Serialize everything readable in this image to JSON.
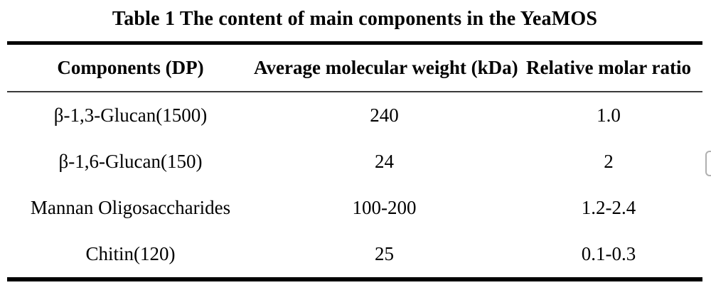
{
  "title": "Table 1 The content of main components in the YeaMOS",
  "table": {
    "headers": [
      "Components (DP)",
      "Average molecular weight (kDa)",
      "Relative molar ratio"
    ],
    "rows": [
      [
        "β-1,3-Glucan(1500)",
        "240",
        "1.0"
      ],
      [
        "β-1,6-Glucan(150)",
        "24",
        "2"
      ],
      [
        "Mannan Oligosaccharides",
        "100-200",
        "1.2-2.4"
      ],
      [
        "Chitin(120)",
        "25",
        "0.1-0.3"
      ]
    ]
  },
  "colors": {
    "text": "#000000",
    "thick_rule": "#000000",
    "thin_rule": "#3a3a3a",
    "fragment_border": "#b0b0b0",
    "background": "#ffffff"
  }
}
